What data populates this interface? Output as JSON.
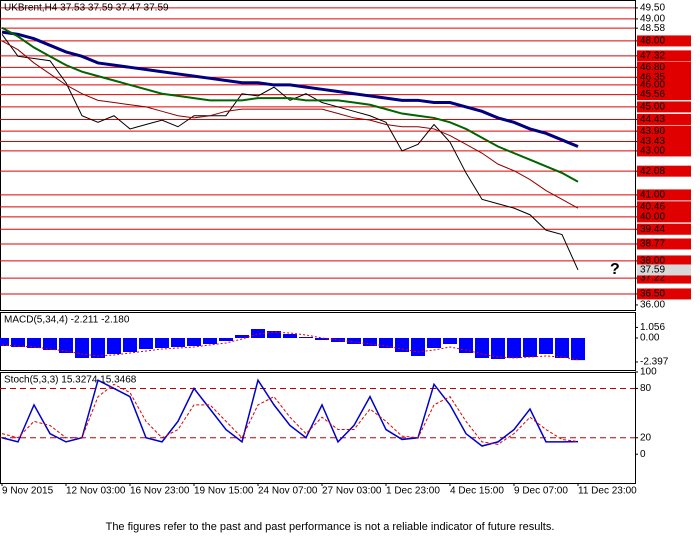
{
  "chart_data": [
    {
      "type": "line",
      "title": "UKBrent,H4  37.53 37.59 37.47 37.59",
      "categories": [
        "9 Nov 2015",
        null,
        null,
        null,
        "12 Nov 03:00",
        null,
        null,
        null,
        "16 Nov 23:00",
        null,
        null,
        null,
        "19 Nov 15:00",
        null,
        null,
        null,
        "24 Nov 07:00",
        null,
        null,
        null,
        "27 Nov 03:00",
        null,
        null,
        null,
        "1 Dec 23:00",
        null,
        null,
        null,
        "4 Dec 15:00",
        null,
        null,
        null,
        "9 Dec 07:00",
        null,
        null,
        null,
        "11 Dec 23:00"
      ],
      "series": [
        {
          "color": "#000000",
          "width": 1,
          "values": [
            48.3,
            47.3,
            47.2,
            47.1,
            46.1,
            44.6,
            44.3,
            44.6,
            44.0,
            44.2,
            44.4,
            44.1,
            44.6,
            44.6,
            44.6,
            45.6,
            45.5,
            45.9,
            45.3,
            45.6,
            45.2,
            45.0,
            44.8,
            44.6,
            44.3,
            43.0,
            43.3,
            44.2,
            43.4,
            42.0,
            40.8,
            40.6,
            40.4,
            40.1,
            39.4,
            39.2,
            37.59
          ]
        },
        {
          "color": "#000080",
          "width": 3,
          "values": [
            48.4,
            48.3,
            48.1,
            47.8,
            47.5,
            47.3,
            47.0,
            46.9,
            46.8,
            46.7,
            46.6,
            46.5,
            46.4,
            46.3,
            46.2,
            46.1,
            46.1,
            46.0,
            46.0,
            45.9,
            45.8,
            45.7,
            45.6,
            45.5,
            45.4,
            45.3,
            45.3,
            45.2,
            45.2,
            45.0,
            44.8,
            44.5,
            44.3,
            44.0,
            43.8,
            43.5,
            43.2
          ]
        },
        {
          "color": "#006400",
          "width": 2,
          "values": [
            48.6,
            48.2,
            47.7,
            47.3,
            46.9,
            46.6,
            46.4,
            46.2,
            46.0,
            45.8,
            45.6,
            45.5,
            45.4,
            45.3,
            45.3,
            45.3,
            45.4,
            45.4,
            45.4,
            45.3,
            45.3,
            45.3,
            45.2,
            45.1,
            44.9,
            44.7,
            44.6,
            44.5,
            44.3,
            44.0,
            43.6,
            43.2,
            42.9,
            42.6,
            42.3,
            42.0,
            41.6
          ]
        },
        {
          "color": "#8b0000",
          "width": 1,
          "values": [
            48.0,
            47.6,
            47.0,
            46.5,
            46.0,
            45.6,
            45.3,
            45.2,
            45.1,
            45.0,
            44.8,
            44.6,
            44.5,
            44.6,
            44.8,
            44.9,
            44.9,
            44.9,
            44.9,
            44.9,
            44.9,
            44.7,
            44.5,
            44.4,
            44.2,
            44.1,
            44.1,
            44.0,
            43.7,
            43.3,
            42.9,
            42.4,
            42.1,
            41.7,
            41.2,
            40.8,
            40.4
          ]
        }
      ],
      "current_price": 37.59,
      "scenario_mark": "?",
      "level_color": "#e00000",
      "ylim": [
        35.77,
        49.86
      ],
      "yticks": [
        {
          "value": 49.5,
          "label": "49.50",
          "level": true
        },
        {
          "value": 49.0,
          "label": "49.00",
          "level": true
        },
        {
          "value": 48.58,
          "label": "48.58",
          "level": true
        },
        {
          "value": 48.0,
          "label": "48.00",
          "level": true,
          "fill": "#e00000"
        },
        {
          "value": 47.32,
          "label": "47.32",
          "level": true,
          "fill": "#e00000"
        },
        {
          "value": 46.8,
          "label": "46.80",
          "level": true,
          "fill": "#e00000"
        },
        {
          "value": 46.35,
          "label": "46.35",
          "level": true,
          "fill": "#e00000"
        },
        {
          "value": 46.0,
          "label": "46.00",
          "level": true,
          "fill": "#e00000"
        },
        {
          "value": 45.56,
          "label": "45.56",
          "level": true,
          "fill": "#e00000"
        },
        {
          "value": 45.0,
          "label": "45.00",
          "level": true,
          "fill": "#e00000"
        },
        {
          "value": 44.43,
          "label": "44.43",
          "level": true,
          "fill": "#e00000"
        },
        {
          "value": 43.9,
          "label": "43.90",
          "level": true,
          "fill": "#e00000"
        },
        {
          "value": 43.43,
          "label": "43.43",
          "level": true,
          "fill": "#e00000"
        },
        {
          "value": 43.0,
          "label": "43.00",
          "level": true,
          "fill": "#e00000"
        },
        {
          "value": 42.08,
          "label": "42.08",
          "level": true,
          "fill": "#e00000"
        },
        {
          "value": 41.0,
          "label": "41.00",
          "level": true,
          "fill": "#e00000"
        },
        {
          "value": 40.46,
          "label": "40.46",
          "level": true,
          "fill": "#e00000"
        },
        {
          "value": 40.0,
          "label": "40.00",
          "level": true,
          "fill": "#e00000"
        },
        {
          "value": 39.44,
          "label": "39.44",
          "level": true,
          "fill": "#e00000"
        },
        {
          "value": 38.77,
          "label": "38.77",
          "level": true,
          "fill": "#e00000"
        },
        {
          "value": 38.0,
          "label": "38.00",
          "level": true,
          "fill": "#e00000"
        },
        {
          "value": 37.22,
          "label": "37.22",
          "level": true,
          "fill": "#e00000"
        },
        {
          "value": 36.5,
          "label": "36.50",
          "level": true,
          "fill": "#e00000"
        },
        {
          "value": 36.0,
          "label": "36.00"
        }
      ]
    },
    {
      "type": "bar",
      "title": "MACD(5,34,4) -2.211 -2.180",
      "series": [
        {
          "style": "bar",
          "color": "#0000ff",
          "values": [
            -0.8,
            -0.9,
            -1.0,
            -1.2,
            -1.5,
            -2.0,
            -2.0,
            -1.6,
            -1.4,
            -1.1,
            -1.0,
            -0.9,
            -0.8,
            -0.6,
            -0.3,
            0.3,
            0.9,
            0.7,
            0.4,
            0.1,
            -0.2,
            -0.4,
            -0.6,
            -0.8,
            -1.0,
            -1.4,
            -1.8,
            -1.0,
            -0.6,
            -1.5,
            -2.0,
            -2.1,
            -2.0,
            -1.9,
            -1.6,
            -2.0,
            -2.211
          ]
        },
        {
          "style": "dotted",
          "color": "#e00000",
          "values": [
            -0.7,
            -0.8,
            -0.9,
            -1.1,
            -1.3,
            -1.6,
            -1.8,
            -1.7,
            -1.5,
            -1.3,
            -1.1,
            -1.0,
            -0.9,
            -0.7,
            -0.5,
            -0.1,
            0.4,
            0.6,
            0.5,
            0.3,
            0.0,
            -0.2,
            -0.4,
            -0.6,
            -0.8,
            -1.1,
            -1.4,
            -1.2,
            -0.9,
            -1.2,
            -1.6,
            -1.9,
            -2.0,
            -1.9,
            -1.8,
            -1.9,
            -2.18
          ]
        }
      ],
      "ylim": [
        -3.2,
        2.6
      ],
      "yticks": [
        1.056,
        {
          "value": 0,
          "label": "0.00"
        },
        -2.397
      ]
    },
    {
      "type": "line",
      "title": "Stoch(5,3,3) 15.3274 15.3468",
      "series": [
        {
          "color": "#0000cc",
          "width": 1.5,
          "values": [
            20,
            15,
            60,
            25,
            15,
            20,
            90,
            80,
            70,
            20,
            15,
            40,
            80,
            55,
            30,
            15,
            90,
            60,
            35,
            20,
            60,
            15,
            35,
            70,
            30,
            18,
            20,
            85,
            60,
            25,
            10,
            15,
            30,
            55,
            15,
            15,
            15.3274
          ]
        },
        {
          "color": "#e00000",
          "width": 1,
          "dash": "3,2",
          "values": [
            25,
            20,
            40,
            35,
            20,
            20,
            70,
            85,
            75,
            40,
            20,
            30,
            60,
            60,
            40,
            20,
            60,
            70,
            45,
            25,
            45,
            30,
            30,
            55,
            40,
            22,
            20,
            60,
            70,
            40,
            15,
            12,
            25,
            45,
            30,
            18,
            15.3468
          ]
        }
      ],
      "level_color": "#c00000",
      "ylim": [
        -35,
        100
      ],
      "yticks": [
        100,
        {
          "value": 80,
          "label": "80",
          "level": true
        },
        {
          "value": 20,
          "label": "20",
          "level": true
        },
        0
      ]
    }
  ],
  "footer": "The figures refer to the past and past performance is not a reliable indicator of future results."
}
